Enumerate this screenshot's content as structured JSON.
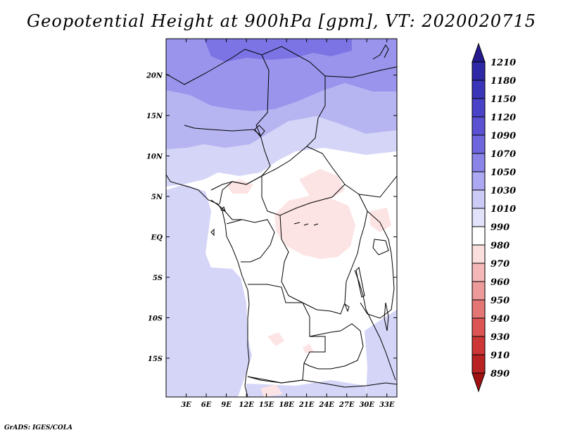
{
  "title": "Geopotential Height at 900hPa [gpm], VT: 2020020715",
  "credit": "GrADS: IGES/COLA",
  "map": {
    "lon_labels": [
      "3E",
      "6E",
      "9E",
      "12E",
      "15E",
      "18E",
      "21E",
      "24E",
      "27E",
      "30E",
      "33E"
    ],
    "lat_labels": [
      "20N",
      "15N",
      "10N",
      "5N",
      "EQ",
      "5S",
      "10S",
      "15S"
    ],
    "lon_range": [
      0,
      34.5
    ],
    "lat_range": [
      -19.8,
      24.5
    ]
  },
  "colorbar": {
    "levels": [
      "1210",
      "1180",
      "1150",
      "1120",
      "1090",
      "1070",
      "1050",
      "1030",
      "1010",
      "990",
      "980",
      "970",
      "960",
      "950",
      "940",
      "930",
      "910",
      "890"
    ],
    "colors": [
      "#241a8e",
      "#2e28a6",
      "#3a34b8",
      "#4a42c8",
      "#5a52d2",
      "#6e66dc",
      "#8a84e8",
      "#aca8f2",
      "#cccbf6",
      "#e2e2fa",
      "#ffffff",
      "#fbdede",
      "#f4b8b8",
      "#ec9a9a",
      "#e47676",
      "#dc5454",
      "#cc3636",
      "#b82222",
      "#a01212"
    ]
  },
  "colors": {
    "purple_dark": "#7c74e4",
    "purple_mid": "#9a94ec",
    "lavender": "#b7b4f2",
    "light_lavender": "#d5d5f8",
    "land_white": "#ffffff",
    "pink": "#fde4e4",
    "border_line": "#000000"
  }
}
